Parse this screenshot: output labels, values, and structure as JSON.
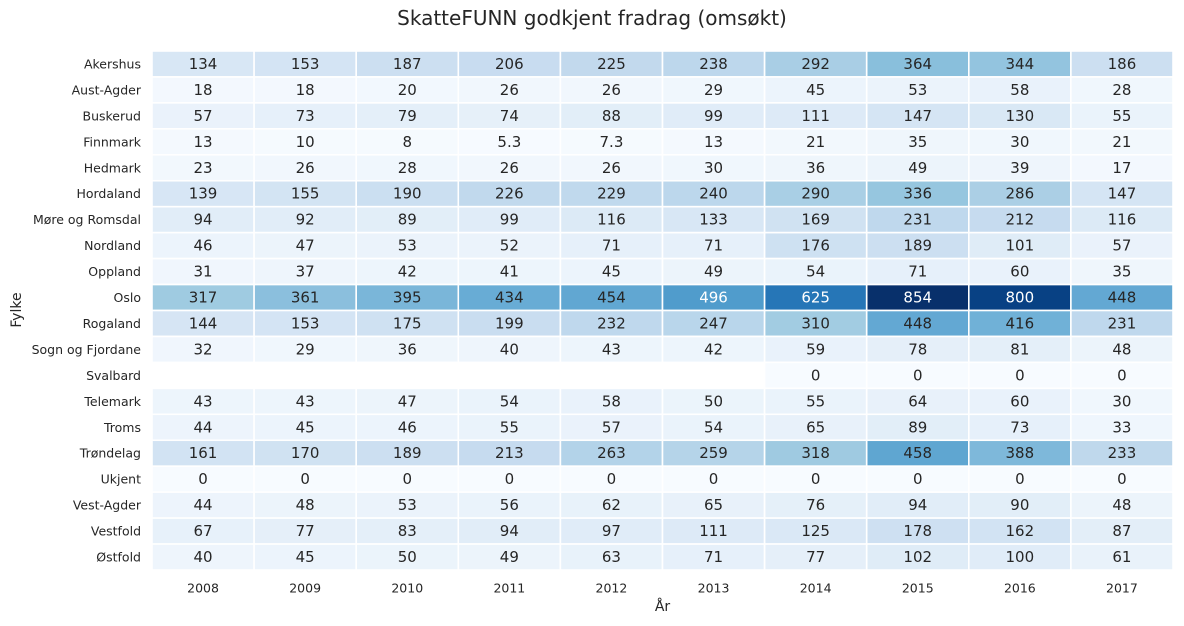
{
  "chart_data": {
    "type": "heatmap",
    "title": "SkatteFUNN godkjent fradrag (omsøkt)",
    "xlabel": "År",
    "ylabel": "Fylke",
    "x": [
      "2008",
      "2009",
      "2010",
      "2011",
      "2012",
      "2013",
      "2014",
      "2015",
      "2016",
      "2017"
    ],
    "y": [
      "Akershus",
      "Aust-Agder",
      "Buskerud",
      "Finnmark",
      "Hedmark",
      "Hordaland",
      "Møre og Romsdal",
      "Nordland",
      "Oppland",
      "Oslo",
      "Rogaland",
      "Sogn og Fjordane",
      "Svalbard",
      "Telemark",
      "Troms",
      "Trøndelag",
      "Ukjent",
      "Vest-Agder",
      "Vestfold",
      "Østfold"
    ],
    "values": [
      [
        134,
        153,
        187,
        206,
        225,
        238,
        292,
        364,
        344,
        186
      ],
      [
        18,
        18,
        20,
        26,
        26,
        29,
        45,
        53,
        58,
        28
      ],
      [
        57,
        73,
        79,
        74,
        88,
        99,
        111,
        147,
        130,
        55
      ],
      [
        13,
        10,
        8,
        5.3,
        7.3,
        13,
        21,
        35,
        30,
        21
      ],
      [
        23,
        26,
        28,
        26,
        26,
        30,
        36,
        49,
        39,
        17
      ],
      [
        139,
        155,
        190,
        226,
        229,
        240,
        290,
        336,
        286,
        147
      ],
      [
        94,
        92,
        89,
        99,
        116,
        133,
        169,
        231,
        212,
        116
      ],
      [
        46,
        47,
        53,
        52,
        71,
        71,
        176,
        189,
        101,
        57
      ],
      [
        31,
        37,
        42,
        41,
        45,
        49,
        54,
        71,
        60,
        35
      ],
      [
        317,
        361,
        395,
        434,
        454,
        496,
        625,
        854,
        800,
        448
      ],
      [
        144,
        153,
        175,
        199,
        232,
        247,
        310,
        448,
        416,
        231
      ],
      [
        32,
        29,
        36,
        40,
        43,
        42,
        59,
        78,
        81,
        48
      ],
      [
        null,
        null,
        null,
        null,
        null,
        null,
        0,
        0,
        0,
        0
      ],
      [
        43,
        43,
        47,
        54,
        58,
        50,
        55,
        64,
        60,
        30
      ],
      [
        44,
        45,
        46,
        55,
        57,
        54,
        65,
        89,
        73,
        33
      ],
      [
        161,
        170,
        189,
        213,
        263,
        259,
        318,
        458,
        388,
        233
      ],
      [
        0,
        0,
        0,
        0,
        0,
        0,
        0,
        0,
        0,
        0
      ],
      [
        44,
        48,
        53,
        56,
        62,
        65,
        76,
        94,
        90,
        48
      ],
      [
        67,
        77,
        83,
        94,
        97,
        111,
        125,
        178,
        162,
        87
      ],
      [
        40,
        45,
        50,
        49,
        63,
        71,
        77,
        102,
        100,
        61
      ]
    ],
    "colormap": "Blues",
    "vmin": 0,
    "vmax": 854,
    "cell_border_color": "#ffffff",
    "annotations": true,
    "colorbar": false,
    "grid": false
  }
}
